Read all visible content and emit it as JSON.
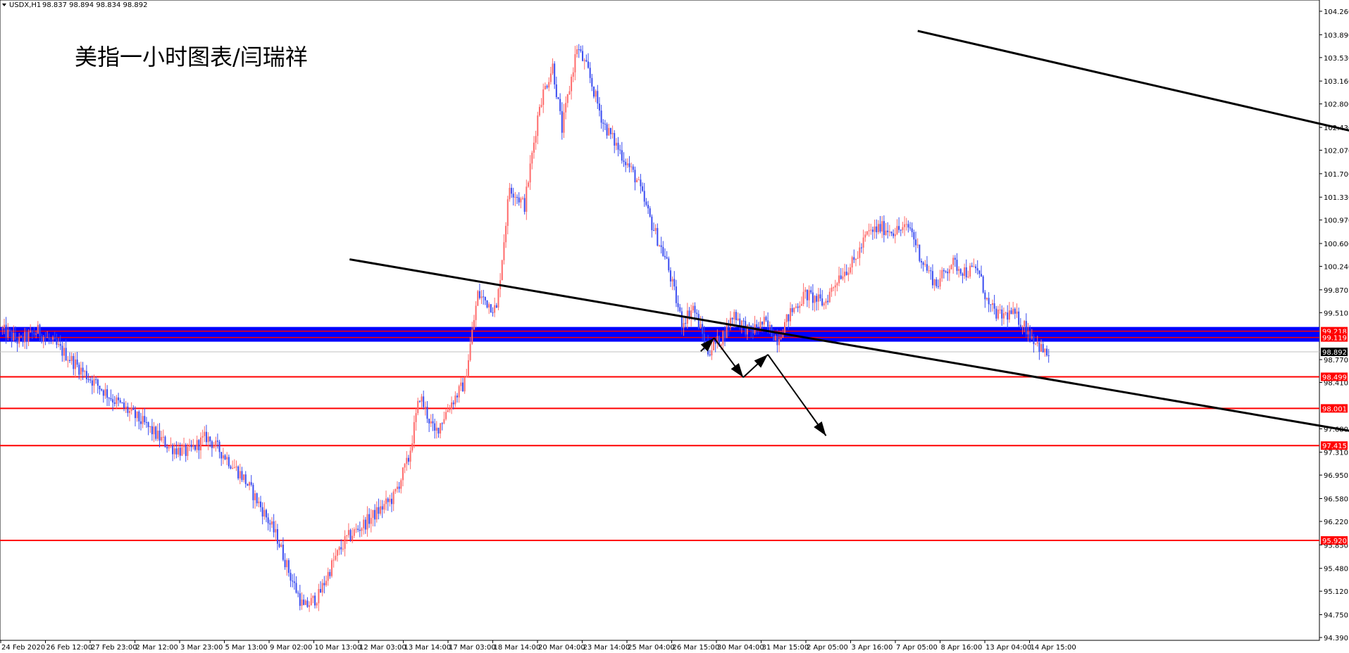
{
  "header": {
    "symbol": "USDX,H1",
    "ohlc": "98.837 98.894 98.834 98.892"
  },
  "chart_title": "美指一小时图表/闫瑞祥",
  "chart_data": {
    "type": "candlestick",
    "symbol": "USDX",
    "timeframe": "H1",
    "title": "美指一小时图表/闫瑞祥",
    "ylim": [
      94.39,
      104.26
    ],
    "y_ticks": [
      "104.260",
      "103.890",
      "103.530",
      "103.160",
      "102.800",
      "102.430",
      "102.070",
      "101.700",
      "101.330",
      "100.970",
      "100.600",
      "100.240",
      "99.870",
      "99.510",
      "99.218",
      "99.119",
      "98.892",
      "98.770",
      "98.499",
      "98.410",
      "98.001",
      "97.680",
      "97.415",
      "97.310",
      "96.950",
      "96.580",
      "96.220",
      "95.920",
      "95.850",
      "95.480",
      "95.120",
      "94.750",
      "94.390"
    ],
    "x_ticks": [
      "24 Feb 2020",
      "26 Feb 12:00",
      "27 Feb 23:00",
      "2 Mar 12:00",
      "3 Mar 23:00",
      "5 Mar 13:00",
      "9 Mar 02:00",
      "10 Mar 13:00",
      "12 Mar 03:00",
      "13 Mar 14:00",
      "17 Mar 03:00",
      "18 Mar 14:00",
      "20 Mar 04:00",
      "23 Mar 14:00",
      "25 Mar 04:00",
      "26 Mar 15:00",
      "30 Mar 04:00",
      "31 Mar 15:00",
      "2 Apr 05:00",
      "3 Apr 16:00",
      "7 Apr 05:00",
      "8 Apr 16:00",
      "13 Apr 04:00",
      "14 Apr 15:00"
    ],
    "path_knots": [
      [
        0,
        99.25
      ],
      [
        10,
        99.05
      ],
      [
        20,
        99.22
      ],
      [
        35,
        98.85
      ],
      [
        45,
        98.55
      ],
      [
        60,
        98.15
      ],
      [
        75,
        97.8
      ],
      [
        90,
        97.4
      ],
      [
        100,
        97.3
      ],
      [
        110,
        97.55
      ],
      [
        120,
        97.25
      ],
      [
        130,
        96.9
      ],
      [
        140,
        96.4
      ],
      [
        148,
        95.95
      ],
      [
        155,
        95.35
      ],
      [
        162,
        94.85
      ],
      [
        170,
        95.05
      ],
      [
        178,
        95.6
      ],
      [
        185,
        95.95
      ],
      [
        195,
        96.2
      ],
      [
        210,
        96.6
      ],
      [
        218,
        97.2
      ],
      [
        224,
        98.2
      ],
      [
        232,
        97.6
      ],
      [
        240,
        98.05
      ],
      [
        248,
        98.4
      ],
      [
        255,
        99.8
      ],
      [
        265,
        99.55
      ],
      [
        272,
        101.5
      ],
      [
        280,
        101.2
      ],
      [
        288,
        102.8
      ],
      [
        295,
        103.4
      ],
      [
        300,
        102.4
      ],
      [
        308,
        103.7
      ],
      [
        314,
        103.3
      ],
      [
        322,
        102.5
      ],
      [
        330,
        102.1
      ],
      [
        340,
        101.6
      ],
      [
        348,
        100.9
      ],
      [
        356,
        100.3
      ],
      [
        364,
        99.35
      ],
      [
        370,
        99.6
      ],
      [
        378,
        98.9
      ],
      [
        385,
        99.1
      ],
      [
        392,
        99.5
      ],
      [
        400,
        99.2
      ],
      [
        408,
        99.35
      ],
      [
        415,
        99.1
      ],
      [
        422,
        99.5
      ],
      [
        430,
        99.8
      ],
      [
        440,
        99.65
      ],
      [
        448,
        100.1
      ],
      [
        456,
        100.3
      ],
      [
        463,
        100.75
      ],
      [
        470,
        100.85
      ],
      [
        478,
        100.8
      ],
      [
        486,
        100.85
      ],
      [
        492,
        100.35
      ],
      [
        500,
        99.95
      ],
      [
        508,
        100.3
      ],
      [
        516,
        100.15
      ],
      [
        522,
        100.2
      ],
      [
        528,
        99.6
      ],
      [
        534,
        99.45
      ],
      [
        540,
        99.5
      ],
      [
        546,
        99.35
      ],
      [
        552,
        99.1
      ],
      [
        558,
        98.86
      ]
    ],
    "candles_total": 560,
    "levels": [
      {
        "name": "resistance-zone-top",
        "value": 99.218,
        "label": "99.218"
      },
      {
        "name": "resistance-zone-bottom",
        "value": 99.119,
        "label": "99.119"
      },
      {
        "name": "support-1",
        "value": 98.499,
        "label": "98.499"
      },
      {
        "name": "support-2",
        "value": 98.001,
        "label": "98.001"
      },
      {
        "name": "support-3",
        "value": 97.415,
        "label": "97.415"
      },
      {
        "name": "support-4",
        "value": 95.92,
        "label": "95.920"
      }
    ],
    "current_price": 98.892,
    "current_price_label": "98.892",
    "channel_lines": [
      {
        "name": "channel-upper",
        "from": [
          20.5,
          103.95
        ],
        "to": [
          61.5,
          97.28
        ]
      },
      {
        "name": "channel-lower",
        "from": [
          7.8,
          100.35
        ],
        "to": [
          57.1,
          94.39
        ]
      }
    ],
    "arrows": [
      {
        "name": "projection-arrow-1",
        "points": [
          [
            15.65,
            98.9
          ],
          [
            15.95,
            99.11
          ]
        ]
      },
      {
        "name": "projection-arrow-2",
        "points": [
          [
            15.95,
            99.11
          ],
          [
            16.6,
            98.49
          ]
        ]
      },
      {
        "name": "projection-arrow-3",
        "points": [
          [
            16.6,
            98.49
          ],
          [
            17.15,
            98.85
          ]
        ]
      },
      {
        "name": "projection-arrow-4",
        "points": [
          [
            17.15,
            98.85
          ],
          [
            18.45,
            97.57
          ]
        ]
      }
    ],
    "colors": {
      "bull": "#ff6b6b",
      "bear": "#3a4cf0",
      "resistance_zone": "#0000ff",
      "level_line": "#ff0000",
      "channel": "#000000",
      "current_price_line": "#c0c0c0",
      "current_price_label_bg": "#000000"
    }
  }
}
